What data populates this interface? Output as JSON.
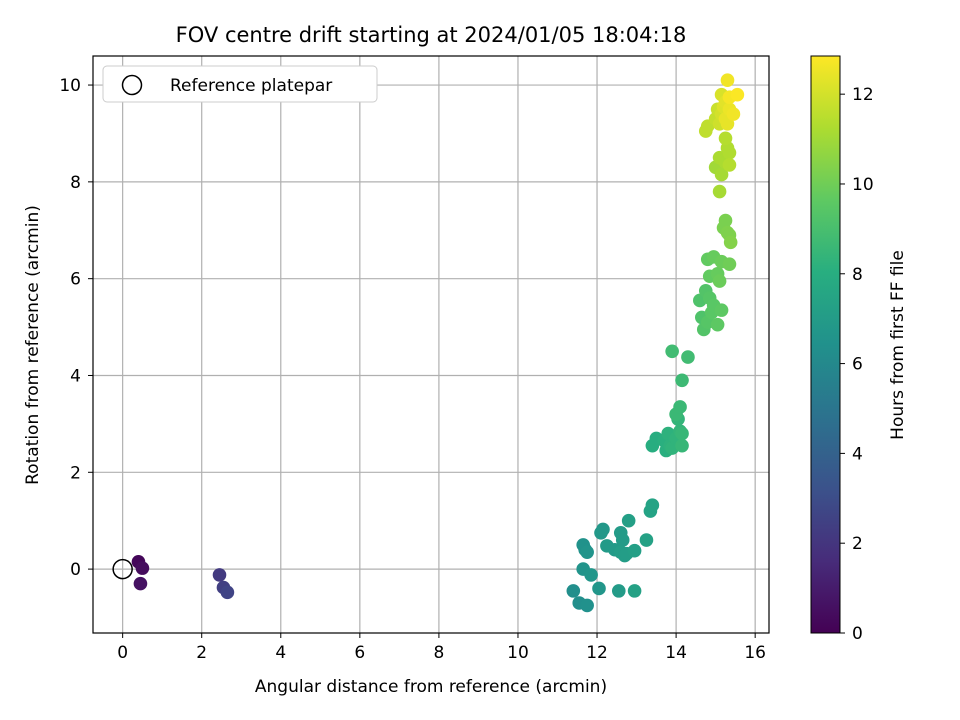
{
  "chart_data": {
    "type": "scatter",
    "title": "FOV centre drift starting at 2024/01/05 18:04:18",
    "xlabel": "Angular distance from reference (arcmin)",
    "ylabel": "Rotation from reference (arcmin)",
    "xlim": [
      -0.75,
      16.35
    ],
    "ylim": [
      -1.32,
      10.6
    ],
    "xticks": [
      0,
      2,
      4,
      6,
      8,
      10,
      12,
      14,
      16
    ],
    "yticks": [
      0,
      2,
      4,
      6,
      8,
      10
    ],
    "grid": true,
    "legend": {
      "placement": "top-left",
      "entries": [
        "Reference platepar"
      ]
    },
    "reference_point": {
      "x": 0,
      "y": 0,
      "marker": "open-circle"
    },
    "colorbar": {
      "label": "Hours from first FF file",
      "range": [
        0,
        12.85
      ],
      "ticks": [
        0,
        2,
        4,
        6,
        8,
        10,
        12
      ],
      "colormap": "viridis"
    },
    "points": [
      {
        "x": 0.4,
        "y": 0.15,
        "h": 0.2
      },
      {
        "x": 0.5,
        "y": 0.02,
        "h": 0.4
      },
      {
        "x": 0.45,
        "y": -0.3,
        "h": 0.6
      },
      {
        "x": 2.45,
        "y": -0.12,
        "h": 2.2
      },
      {
        "x": 2.55,
        "y": -0.38,
        "h": 2.4
      },
      {
        "x": 2.65,
        "y": -0.48,
        "h": 2.6
      },
      {
        "x": 11.4,
        "y": -0.45,
        "h": 6.3
      },
      {
        "x": 11.55,
        "y": -0.7,
        "h": 6.3
      },
      {
        "x": 11.75,
        "y": -0.75,
        "h": 6.4
      },
      {
        "x": 11.65,
        "y": 0.5,
        "h": 6.5
      },
      {
        "x": 11.7,
        "y": 0.4,
        "h": 6.5
      },
      {
        "x": 11.75,
        "y": 0.35,
        "h": 6.6
      },
      {
        "x": 11.65,
        "y": 0.0,
        "h": 6.6
      },
      {
        "x": 11.85,
        "y": -0.12,
        "h": 6.7
      },
      {
        "x": 12.05,
        "y": -0.4,
        "h": 6.7
      },
      {
        "x": 12.1,
        "y": 0.75,
        "h": 6.8
      },
      {
        "x": 12.15,
        "y": 0.82,
        "h": 6.8
      },
      {
        "x": 12.25,
        "y": 0.48,
        "h": 6.9
      },
      {
        "x": 12.45,
        "y": 0.4,
        "h": 6.9
      },
      {
        "x": 12.55,
        "y": -0.45,
        "h": 7.0
      },
      {
        "x": 12.6,
        "y": 0.75,
        "h": 7.0
      },
      {
        "x": 12.65,
        "y": 0.6,
        "h": 7.0
      },
      {
        "x": 12.6,
        "y": 0.35,
        "h": 7.1
      },
      {
        "x": 12.7,
        "y": 0.28,
        "h": 7.1
      },
      {
        "x": 12.75,
        "y": 0.32,
        "h": 7.1
      },
      {
        "x": 12.8,
        "y": 1.0,
        "h": 7.2
      },
      {
        "x": 12.95,
        "y": 0.38,
        "h": 7.2
      },
      {
        "x": 12.95,
        "y": -0.45,
        "h": 7.3
      },
      {
        "x": 13.25,
        "y": 0.6,
        "h": 7.3
      },
      {
        "x": 13.35,
        "y": 1.2,
        "h": 7.4
      },
      {
        "x": 13.4,
        "y": 1.32,
        "h": 7.4
      },
      {
        "x": 13.4,
        "y": 2.55,
        "h": 8.0
      },
      {
        "x": 13.5,
        "y": 2.7,
        "h": 8.0
      },
      {
        "x": 13.7,
        "y": 2.65,
        "h": 8.1
      },
      {
        "x": 13.75,
        "y": 2.45,
        "h": 8.1
      },
      {
        "x": 13.8,
        "y": 2.8,
        "h": 8.2
      },
      {
        "x": 13.85,
        "y": 2.55,
        "h": 8.2
      },
      {
        "x": 13.9,
        "y": 2.5,
        "h": 8.3
      },
      {
        "x": 14.0,
        "y": 2.7,
        "h": 8.3
      },
      {
        "x": 14.05,
        "y": 3.1,
        "h": 8.4
      },
      {
        "x": 14.1,
        "y": 2.85,
        "h": 8.4
      },
      {
        "x": 14.15,
        "y": 2.55,
        "h": 8.5
      },
      {
        "x": 14.15,
        "y": 2.8,
        "h": 8.5
      },
      {
        "x": 14.0,
        "y": 3.2,
        "h": 8.6
      },
      {
        "x": 14.1,
        "y": 3.35,
        "h": 8.6
      },
      {
        "x": 14.15,
        "y": 3.9,
        "h": 8.7
      },
      {
        "x": 13.9,
        "y": 4.5,
        "h": 8.8
      },
      {
        "x": 14.3,
        "y": 4.38,
        "h": 8.8
      },
      {
        "x": 14.6,
        "y": 5.55,
        "h": 9.2
      },
      {
        "x": 14.65,
        "y": 5.2,
        "h": 9.2
      },
      {
        "x": 14.7,
        "y": 4.95,
        "h": 9.3
      },
      {
        "x": 14.75,
        "y": 5.75,
        "h": 9.3
      },
      {
        "x": 14.8,
        "y": 5.1,
        "h": 9.4
      },
      {
        "x": 14.85,
        "y": 5.6,
        "h": 9.4
      },
      {
        "x": 14.9,
        "y": 5.3,
        "h": 9.5
      },
      {
        "x": 14.95,
        "y": 5.45,
        "h": 9.5
      },
      {
        "x": 15.05,
        "y": 5.05,
        "h": 9.6
      },
      {
        "x": 15.15,
        "y": 5.35,
        "h": 9.6
      },
      {
        "x": 14.85,
        "y": 6.05,
        "h": 9.7
      },
      {
        "x": 14.8,
        "y": 6.4,
        "h": 9.7
      },
      {
        "x": 14.95,
        "y": 6.45,
        "h": 9.8
      },
      {
        "x": 15.05,
        "y": 6.1,
        "h": 9.8
      },
      {
        "x": 15.1,
        "y": 5.95,
        "h": 9.9
      },
      {
        "x": 15.15,
        "y": 6.35,
        "h": 9.9
      },
      {
        "x": 15.35,
        "y": 6.3,
        "h": 10.0
      },
      {
        "x": 15.2,
        "y": 7.05,
        "h": 10.2
      },
      {
        "x": 15.25,
        "y": 7.2,
        "h": 10.2
      },
      {
        "x": 15.3,
        "y": 6.95,
        "h": 10.3
      },
      {
        "x": 15.35,
        "y": 6.9,
        "h": 10.3
      },
      {
        "x": 15.38,
        "y": 6.75,
        "h": 10.4
      },
      {
        "x": 15.0,
        "y": 8.3,
        "h": 11.0
      },
      {
        "x": 15.1,
        "y": 7.8,
        "h": 11.1
      },
      {
        "x": 15.15,
        "y": 8.15,
        "h": 11.1
      },
      {
        "x": 15.1,
        "y": 8.5,
        "h": 11.2
      },
      {
        "x": 15.25,
        "y": 8.4,
        "h": 11.2
      },
      {
        "x": 15.3,
        "y": 8.7,
        "h": 11.3
      },
      {
        "x": 15.35,
        "y": 8.6,
        "h": 11.3
      },
      {
        "x": 15.25,
        "y": 8.9,
        "h": 11.4
      },
      {
        "x": 15.35,
        "y": 8.35,
        "h": 11.4
      },
      {
        "x": 14.75,
        "y": 9.05,
        "h": 11.6
      },
      {
        "x": 14.8,
        "y": 9.15,
        "h": 11.6
      },
      {
        "x": 15.0,
        "y": 9.3,
        "h": 11.7
      },
      {
        "x": 15.05,
        "y": 9.5,
        "h": 11.8
      },
      {
        "x": 15.1,
        "y": 9.2,
        "h": 11.9
      },
      {
        "x": 15.15,
        "y": 9.4,
        "h": 12.0
      },
      {
        "x": 15.15,
        "y": 9.8,
        "h": 12.1
      },
      {
        "x": 15.2,
        "y": 9.55,
        "h": 12.2
      },
      {
        "x": 15.25,
        "y": 9.65,
        "h": 12.3
      },
      {
        "x": 15.25,
        "y": 9.3,
        "h": 12.4
      },
      {
        "x": 15.3,
        "y": 9.2,
        "h": 12.4
      },
      {
        "x": 15.35,
        "y": 9.5,
        "h": 12.5
      },
      {
        "x": 15.3,
        "y": 10.1,
        "h": 12.6
      },
      {
        "x": 15.45,
        "y": 9.4,
        "h": 12.6
      },
      {
        "x": 15.35,
        "y": 9.75,
        "h": 12.7
      },
      {
        "x": 15.55,
        "y": 9.8,
        "h": 12.8
      }
    ]
  }
}
